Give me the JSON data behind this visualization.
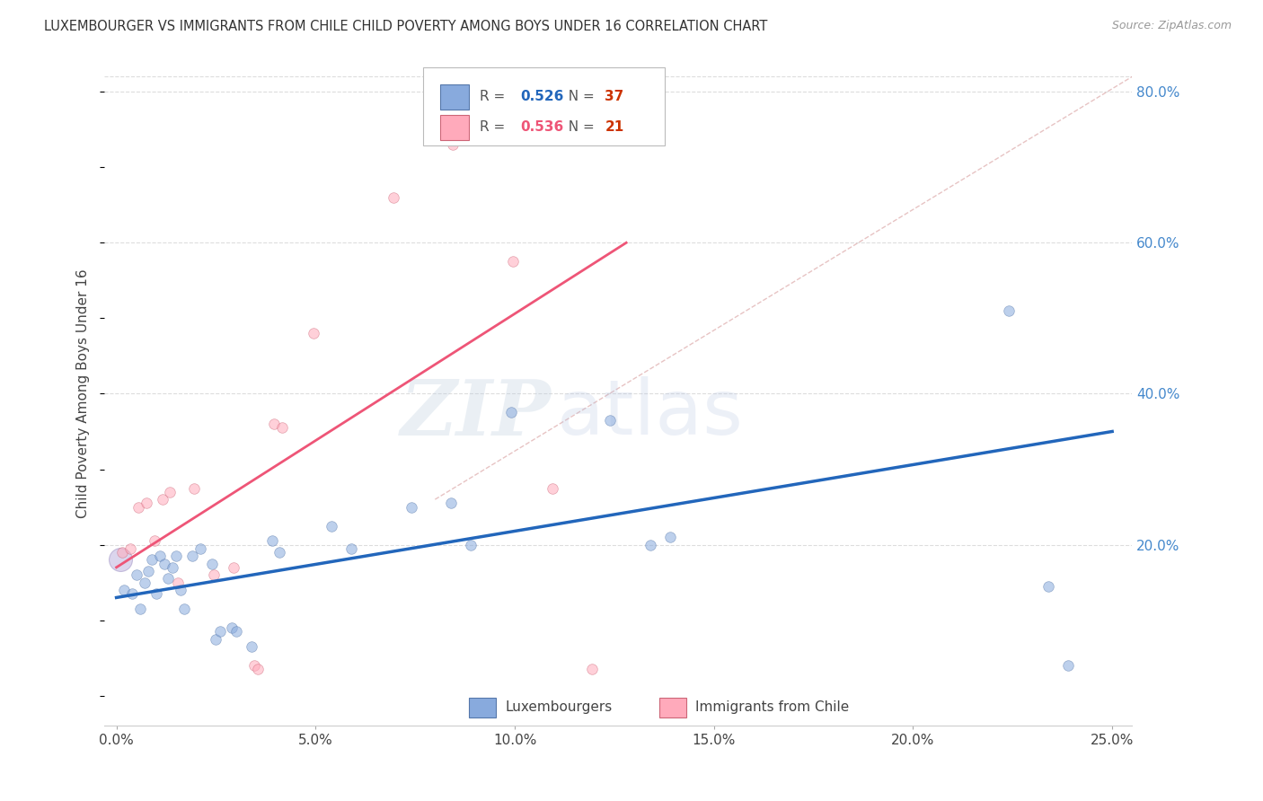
{
  "title": "LUXEMBOURGER VS IMMIGRANTS FROM CHILE CHILD POVERTY AMONG BOYS UNDER 16 CORRELATION CHART",
  "source": "Source: ZipAtlas.com",
  "ylabel": "Child Poverty Among Boys Under 16",
  "xlabel_ticks": [
    "0.0%",
    "5.0%",
    "10.0%",
    "15.0%",
    "20.0%",
    "25.0%"
  ],
  "xlabel_vals": [
    0.0,
    5.0,
    10.0,
    15.0,
    20.0,
    25.0
  ],
  "ylabel_ticks": [
    "20.0%",
    "40.0%",
    "60.0%",
    "80.0%"
  ],
  "ylabel_vals": [
    20.0,
    40.0,
    60.0,
    80.0
  ],
  "xmin": -0.3,
  "xmax": 25.5,
  "ymin": -4.0,
  "ymax": 84.0,
  "blue_R": "0.526",
  "blue_N": "37",
  "pink_R": "0.536",
  "pink_N": "21",
  "legend_label_blue": "Luxembourgers",
  "legend_label_pink": "Immigrants from Chile",
  "blue_color": "#88AADD",
  "pink_color": "#FFAABB",
  "blue_line_color": "#2266BB",
  "pink_line_color": "#EE5577",
  "diag_color": "#DDAAAA",
  "watermark_zip": "ZIP",
  "watermark_atlas": "atlas",
  "blue_dots": [
    [
      0.2,
      14.0
    ],
    [
      0.4,
      13.5
    ],
    [
      0.5,
      16.0
    ],
    [
      0.6,
      11.5
    ],
    [
      0.7,
      15.0
    ],
    [
      0.8,
      16.5
    ],
    [
      0.9,
      18.0
    ],
    [
      1.0,
      13.5
    ],
    [
      1.1,
      18.5
    ],
    [
      1.2,
      17.5
    ],
    [
      1.3,
      15.5
    ],
    [
      1.4,
      17.0
    ],
    [
      1.5,
      18.5
    ],
    [
      1.6,
      14.0
    ],
    [
      1.7,
      11.5
    ],
    [
      1.9,
      18.5
    ],
    [
      2.1,
      19.5
    ],
    [
      2.4,
      17.5
    ],
    [
      2.5,
      7.5
    ],
    [
      2.6,
      8.5
    ],
    [
      2.9,
      9.0
    ],
    [
      3.0,
      8.5
    ],
    [
      3.4,
      6.5
    ],
    [
      3.9,
      20.5
    ],
    [
      4.1,
      19.0
    ],
    [
      5.4,
      22.5
    ],
    [
      5.9,
      19.5
    ],
    [
      7.4,
      25.0
    ],
    [
      8.4,
      25.5
    ],
    [
      8.9,
      20.0
    ],
    [
      9.9,
      37.5
    ],
    [
      12.4,
      36.5
    ],
    [
      13.4,
      20.0
    ],
    [
      13.9,
      21.0
    ],
    [
      22.4,
      51.0
    ],
    [
      23.4,
      14.5
    ],
    [
      23.9,
      4.0
    ]
  ],
  "pink_dots": [
    [
      0.15,
      19.0
    ],
    [
      0.35,
      19.5
    ],
    [
      0.55,
      25.0
    ],
    [
      0.75,
      25.5
    ],
    [
      0.95,
      20.5
    ],
    [
      1.15,
      26.0
    ],
    [
      1.35,
      27.0
    ],
    [
      1.55,
      15.0
    ],
    [
      1.95,
      27.5
    ],
    [
      2.45,
      16.0
    ],
    [
      2.95,
      17.0
    ],
    [
      3.45,
      4.0
    ],
    [
      3.55,
      3.5
    ],
    [
      3.95,
      36.0
    ],
    [
      4.15,
      35.5
    ],
    [
      4.95,
      48.0
    ],
    [
      6.95,
      66.0
    ],
    [
      8.45,
      73.0
    ],
    [
      9.95,
      57.5
    ],
    [
      10.95,
      27.5
    ],
    [
      11.95,
      3.5
    ]
  ],
  "blue_trendline_x": [
    0.0,
    25.0
  ],
  "blue_trendline_y": [
    13.0,
    35.0
  ],
  "pink_trendline_x": [
    0.0,
    12.8
  ],
  "pink_trendline_y": [
    17.0,
    60.0
  ],
  "diag_line_x": [
    8.0,
    25.5
  ],
  "diag_line_y": [
    26.0,
    82.0
  ],
  "large_blue_dot_x": 0.1,
  "large_blue_dot_y": 18.0,
  "large_blue_dot_size": 350
}
